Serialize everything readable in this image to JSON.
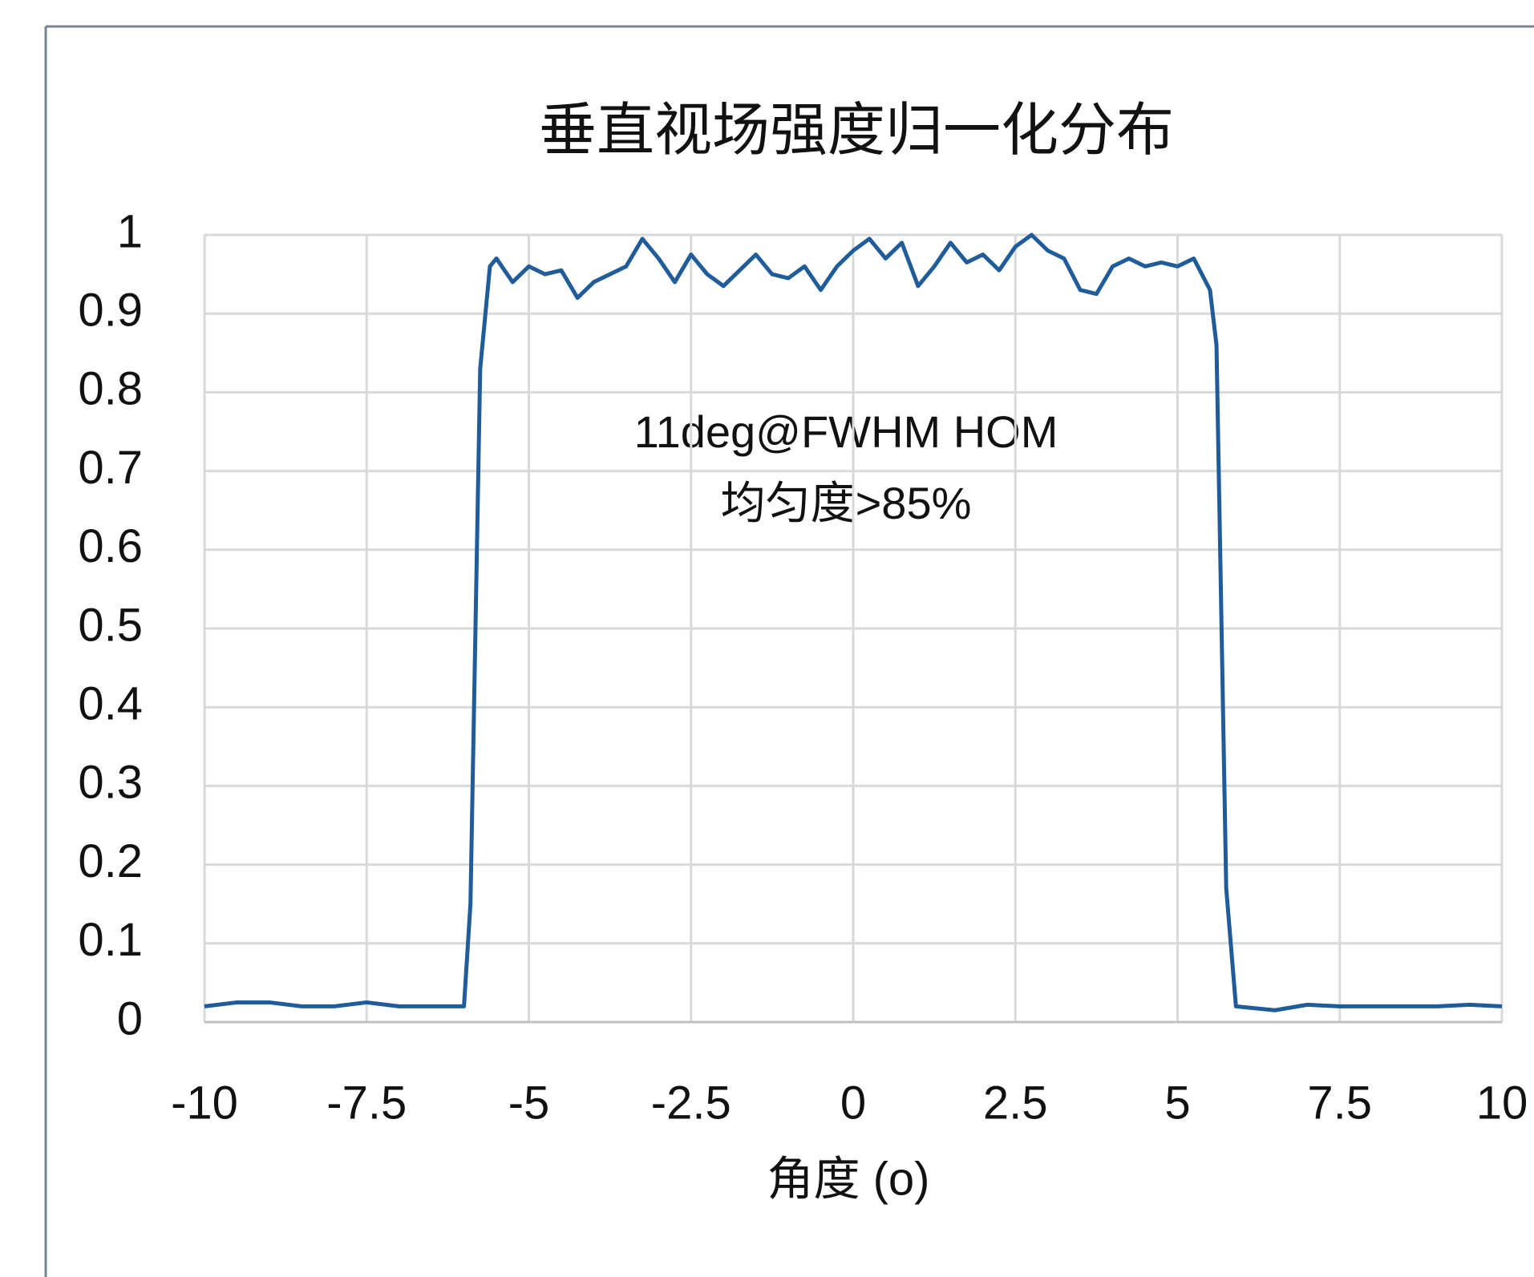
{
  "chart_data": {
    "type": "line",
    "title": "垂直视场强度归一化分布",
    "x_label": "角度 (o)",
    "annotations": [
      "11deg@FWHM HOM",
      "均匀度>85%"
    ],
    "color": "#1f5c99",
    "x": [
      -10,
      -9.5,
      -9,
      -8.5,
      -8,
      -7.5,
      -7,
      -6.5,
      -6,
      -5.9,
      -5.75,
      -5.6,
      -5.5,
      -5.25,
      -5,
      -4.75,
      -4.5,
      -4.25,
      -4,
      -3.75,
      -3.5,
      -3.25,
      -3,
      -2.75,
      -2.5,
      -2.25,
      -2,
      -1.75,
      -1.5,
      -1.25,
      -1,
      -0.75,
      -0.5,
      -0.25,
      0,
      0.25,
      0.5,
      0.75,
      1,
      1.25,
      1.5,
      1.75,
      2,
      2.25,
      2.5,
      2.75,
      3,
      3.25,
      3.5,
      3.75,
      4,
      4.25,
      4.5,
      4.75,
      5,
      5.25,
      5.5,
      5.6,
      5.75,
      5.9,
      6.5,
      7,
      7.5,
      8,
      8.5,
      9,
      9.5,
      10
    ],
    "values": [
      0.02,
      0.025,
      0.025,
      0.02,
      0.02,
      0.025,
      0.02,
      0.02,
      0.02,
      0.15,
      0.83,
      0.96,
      0.97,
      0.94,
      0.96,
      0.95,
      0.955,
      0.92,
      0.94,
      0.95,
      0.96,
      0.995,
      0.97,
      0.94,
      0.975,
      0.95,
      0.935,
      0.955,
      0.975,
      0.95,
      0.945,
      0.96,
      0.93,
      0.96,
      0.98,
      0.995,
      0.97,
      0.99,
      0.935,
      0.96,
      0.99,
      0.965,
      0.975,
      0.955,
      0.985,
      1.0,
      0.98,
      0.97,
      0.93,
      0.925,
      0.96,
      0.97,
      0.96,
      0.965,
      0.96,
      0.97,
      0.93,
      0.86,
      0.17,
      0.02,
      0.015,
      0.022,
      0.02,
      0.02,
      0.02,
      0.02,
      0.022,
      0.02
    ],
    "xlim": [
      -10,
      10
    ],
    "xticks": [
      -10,
      -7.5,
      -5,
      -2.5,
      0,
      2.5,
      5,
      7.5,
      10
    ],
    "ylim": [
      0,
      1
    ],
    "yticks": [
      0,
      0.1,
      0.2,
      0.3,
      0.4,
      0.5,
      0.6,
      0.7,
      0.8,
      0.9,
      1
    ],
    "grid": true
  }
}
